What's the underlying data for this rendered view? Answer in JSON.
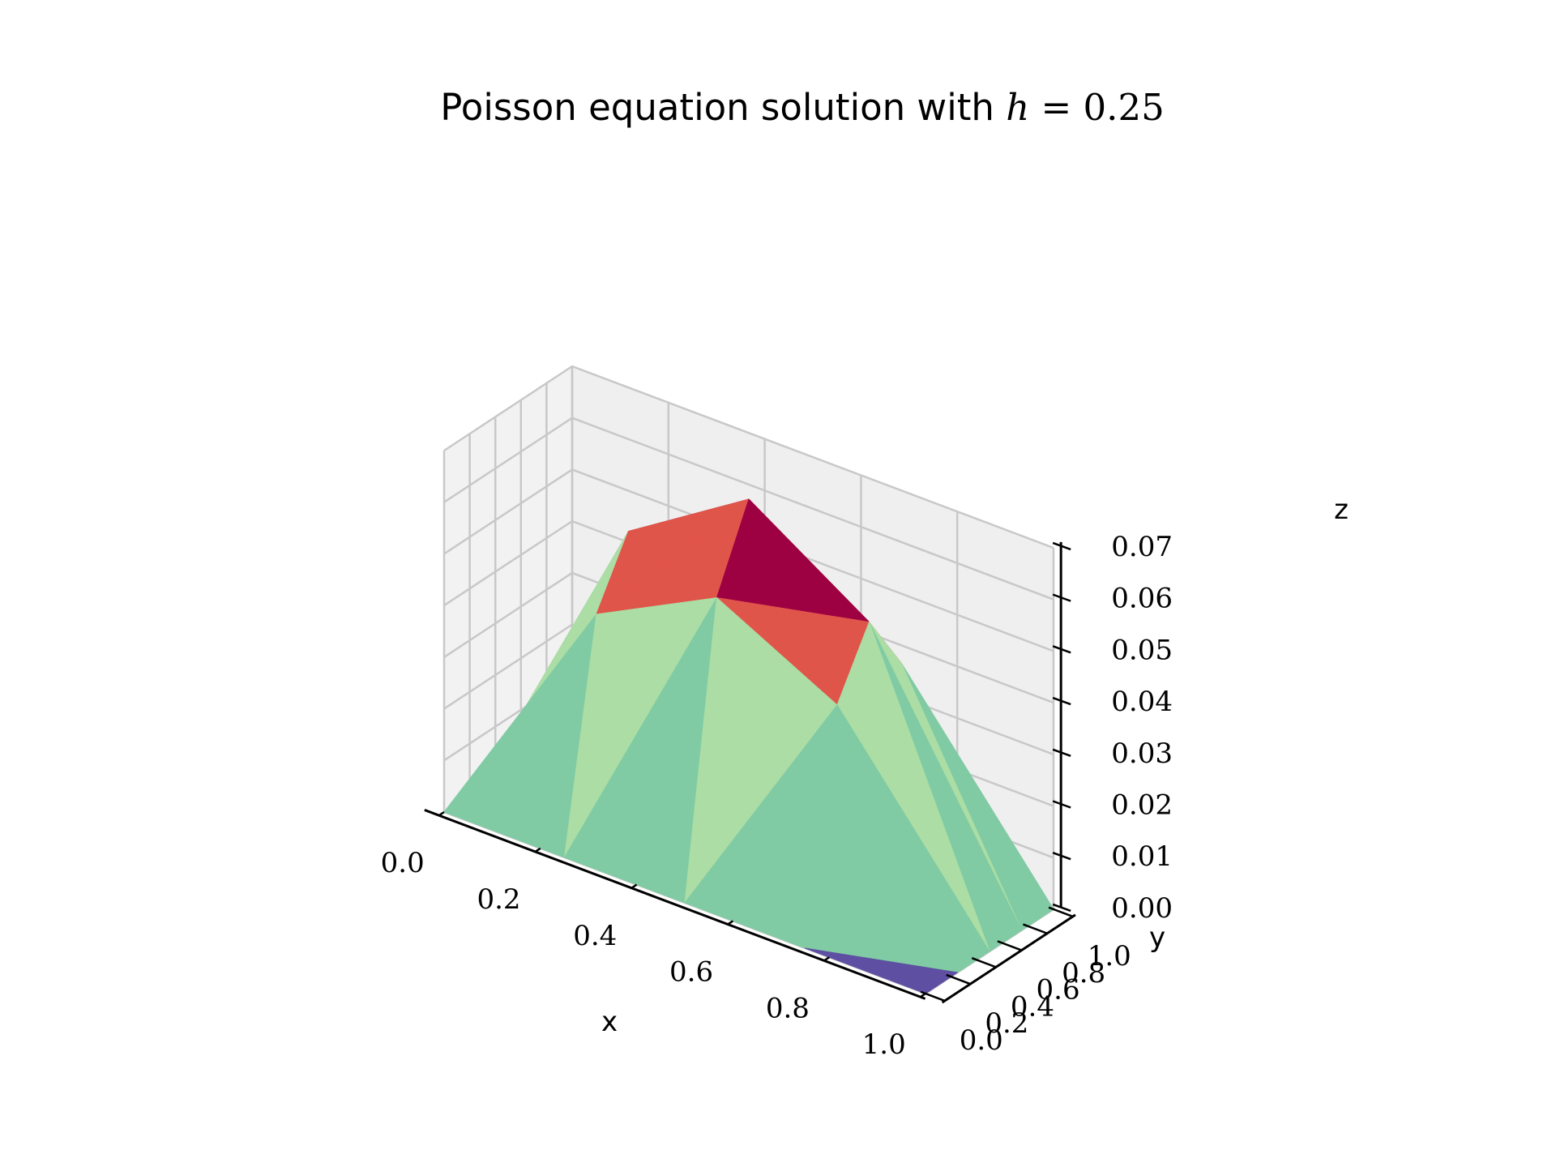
{
  "chart_data": {
    "type": "surface",
    "title": {
      "text": "Poisson equation solution with ",
      "math_var": "h",
      "math_op": " = ",
      "math_val": "0.25"
    },
    "xlabel": "x",
    "ylabel": "y",
    "zlabel": "z",
    "x": [
      0.0,
      0.25,
      0.5,
      0.75,
      1.0
    ],
    "y": [
      0.0,
      0.25,
      0.5,
      0.75,
      1.0
    ],
    "z": [
      [
        0.0,
        0.0,
        0.0,
        0.0,
        0.0
      ],
      [
        0.0,
        0.043,
        0.055,
        0.043,
        0.0
      ],
      [
        0.0,
        0.055,
        0.07,
        0.055,
        0.0
      ],
      [
        0.0,
        0.043,
        0.055,
        0.043,
        0.0
      ],
      [
        0.0,
        0.0,
        0.0,
        0.0,
        0.0
      ]
    ],
    "xlim": [
      0,
      1
    ],
    "ylim": [
      0,
      1
    ],
    "zlim": [
      0,
      0.07
    ],
    "x_ticks": [
      "0.0",
      "0.2",
      "0.4",
      "0.6",
      "0.8",
      "1.0"
    ],
    "y_ticks": [
      "0.0",
      "0.2",
      "0.4",
      "0.6",
      "0.8",
      "1.0"
    ],
    "z_ticks": [
      "0.00",
      "0.01",
      "0.02",
      "0.03",
      "0.04",
      "0.05",
      "0.06",
      "0.07"
    ],
    "colormap": "Spectral_r",
    "colormap_colors": [
      "#5e4fa2",
      "#80cba4",
      "#abdda4",
      "#fef0a6",
      "#e0554a",
      "#9e0142"
    ],
    "grid": true,
    "pane_colors": {
      "side": "#f2f2f2",
      "back": "#efefef",
      "floor": "#f6f6f6",
      "grid": "#c8c8c8"
    }
  }
}
